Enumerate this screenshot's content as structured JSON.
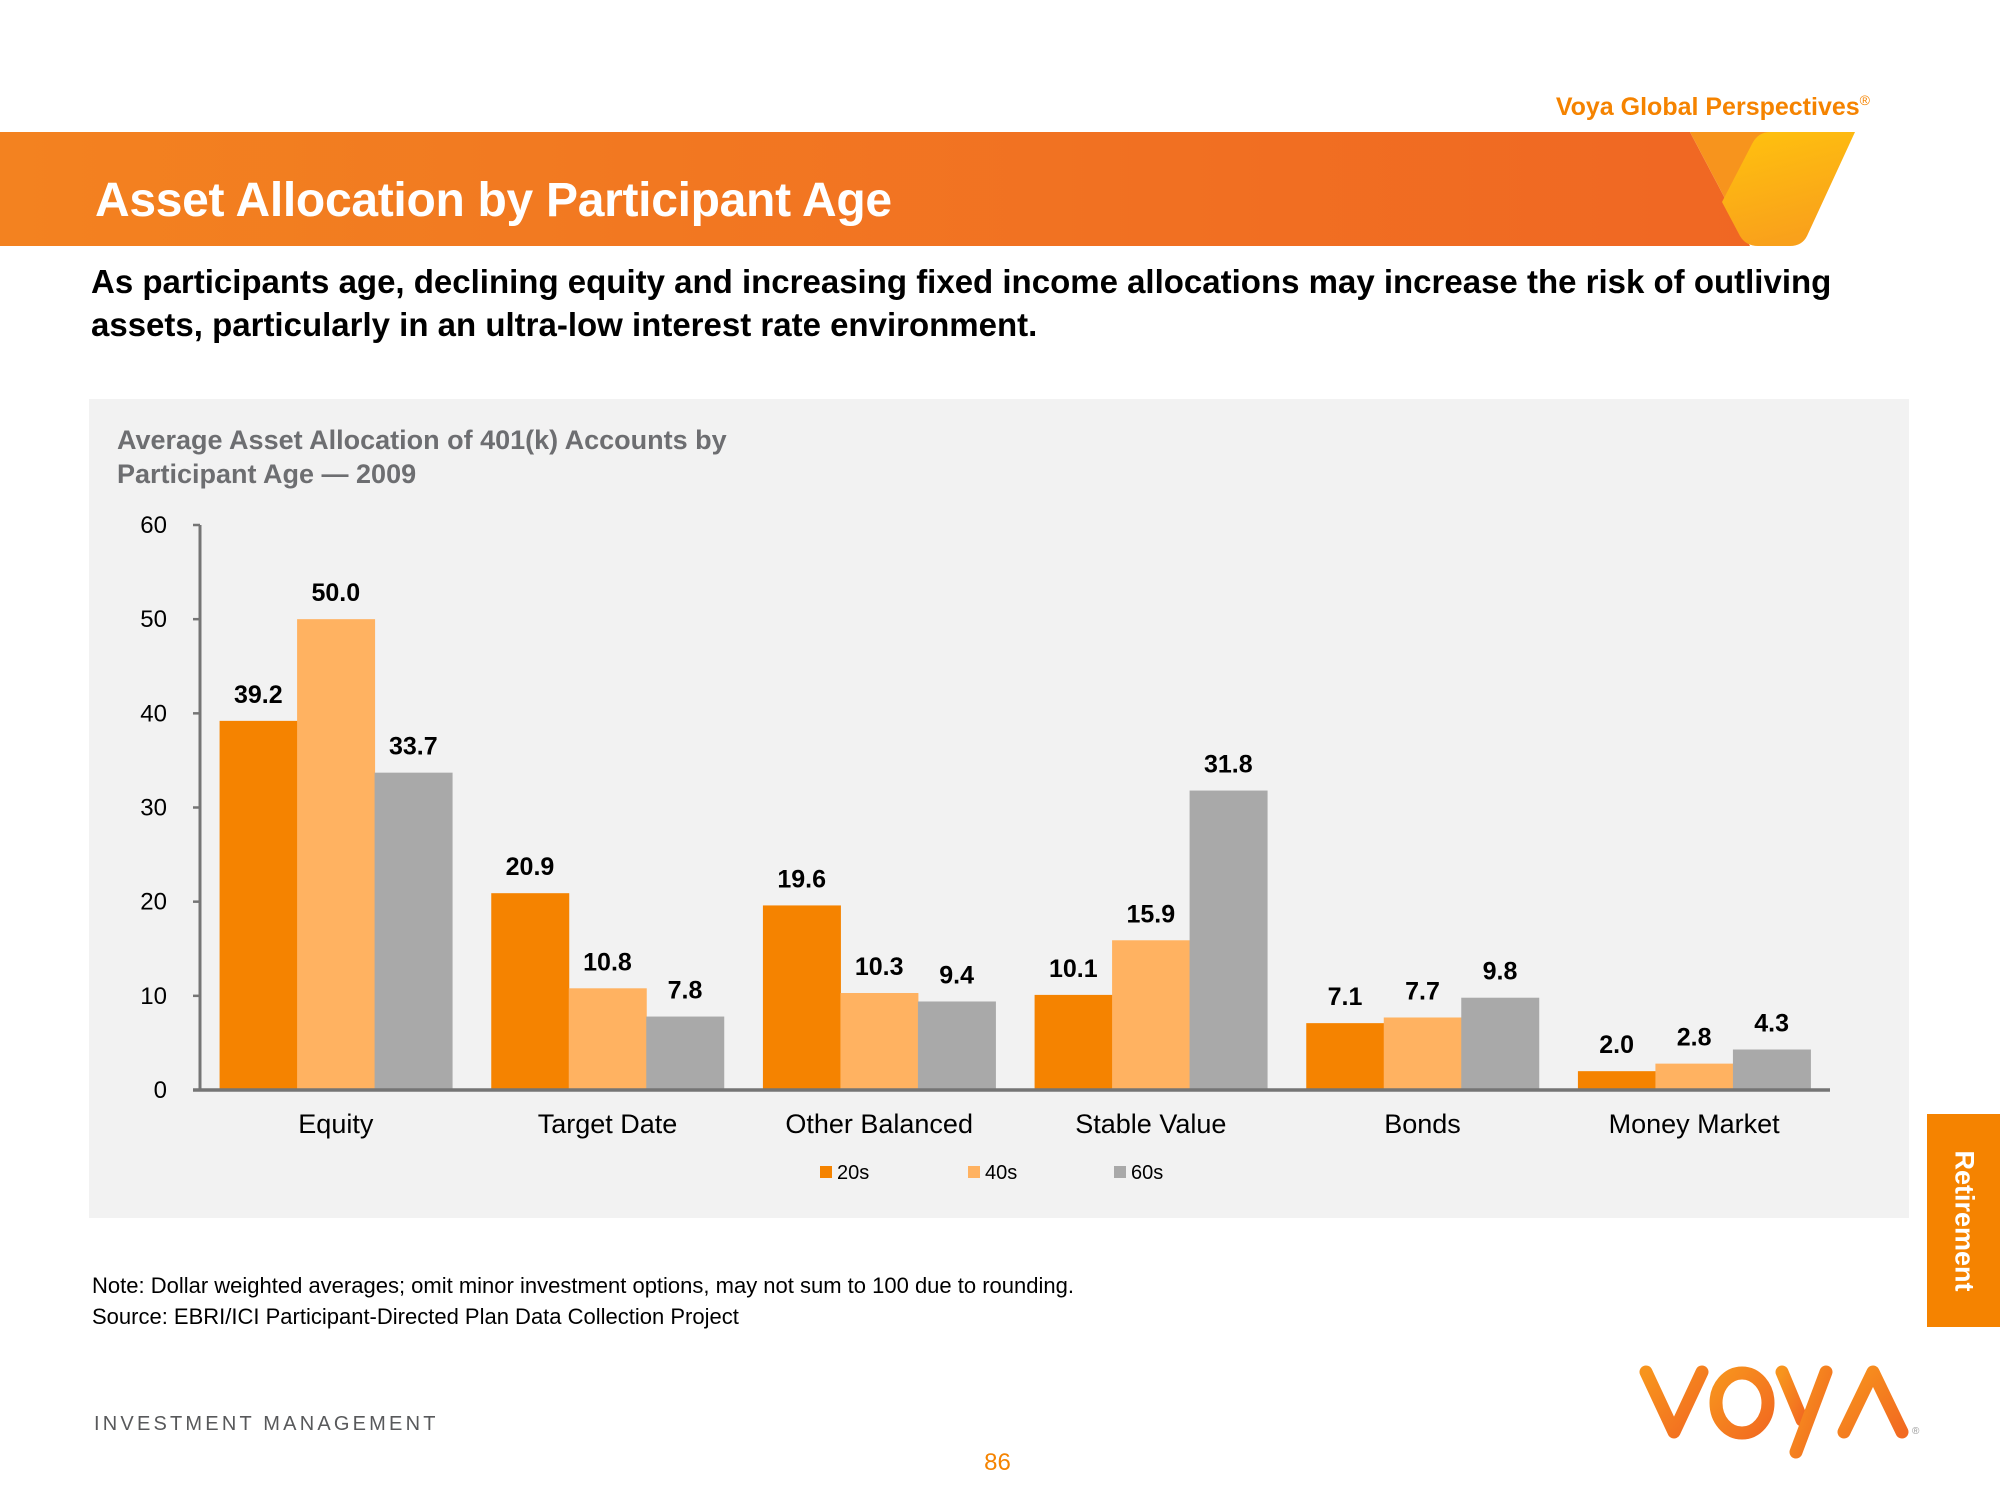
{
  "header": {
    "brand_tagline": "Voya Global Perspectives",
    "brand_tagline_mark": "®",
    "page_title": "Asset Allocation by Participant Age",
    "headline": "As participants age, declining equity and increasing fixed income allocations may increase the risk of outliving assets, particularly in an ultra-low interest rate environment."
  },
  "colors": {
    "brand_orange": "#F58300",
    "banner_left": "#F38220",
    "banner_right": "#F06723",
    "panel_bg": "#F2F2F2"
  },
  "chart_data": {
    "type": "bar",
    "title_line1": "Average Asset Allocation of 401(k) Accounts by",
    "title_line2": "Participant Age — 2009",
    "categories": [
      "Equity",
      "Target Date",
      "Other Balanced",
      "Stable Value",
      "Bonds",
      "Money Market"
    ],
    "series": [
      {
        "name": "20s",
        "color": "#F58300",
        "values": [
          39.2,
          20.9,
          19.6,
          10.1,
          7.1,
          2.0
        ]
      },
      {
        "name": "40s",
        "color": "#FFB261",
        "values": [
          50.0,
          10.8,
          10.3,
          15.9,
          7.7,
          2.8
        ]
      },
      {
        "name": "60s",
        "color": "#A9A9A9",
        "values": [
          33.7,
          7.8,
          9.4,
          31.8,
          9.8,
          4.3
        ]
      }
    ],
    "data_labels": [
      [
        "39.2",
        "20.9",
        "19.6",
        "10.1",
        "7.1",
        "2.0"
      ],
      [
        "50.0",
        "10.8",
        "10.3",
        "15.9",
        "7.7",
        "2.8"
      ],
      [
        "33.7",
        "7.8",
        "9.4",
        "31.8",
        "9.8",
        "4.3"
      ]
    ],
    "y_ticks": [
      "0",
      "10",
      "20",
      "30",
      "40",
      "50",
      "60"
    ],
    "ylim": [
      0,
      60
    ],
    "xlabel": "",
    "ylabel": "",
    "grid": false,
    "legend_position": "bottom-center"
  },
  "footnotes": {
    "note": "Note: Dollar weighted averages; omit minor investment options, may not sum to 100 due to rounding.",
    "source": "Source: EBRI/ICI Participant-Directed Plan Data Collection Project"
  },
  "footer": {
    "division": "INVESTMENT MANAGEMENT",
    "page_number": "86",
    "section_tab": "Retirement",
    "logo_text": "VOYA",
    "logo_mark": "®"
  }
}
